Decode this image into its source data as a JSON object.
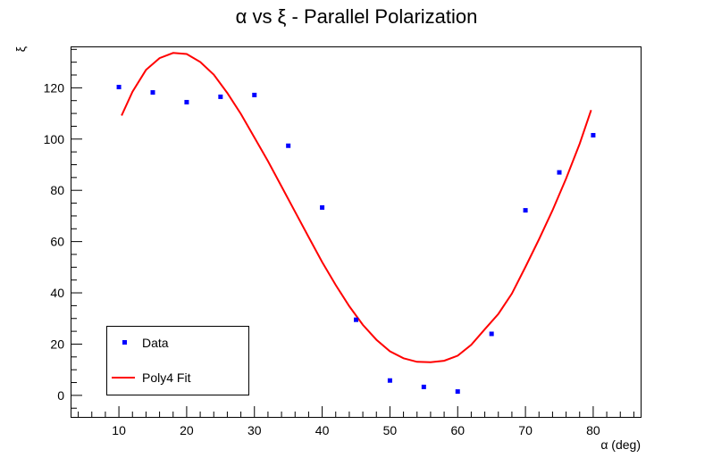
{
  "chart_data": {
    "type": "scatter",
    "title": "α vs ξ - Parallel Polarization",
    "xlabel": "α (deg)",
    "ylabel": "ξ",
    "xlim": [
      3,
      87
    ],
    "ylim": [
      -8.4,
      135.8
    ],
    "xticks": [
      10,
      20,
      30,
      40,
      50,
      60,
      70,
      80
    ],
    "yticks": [
      0,
      20,
      40,
      60,
      80,
      100,
      120
    ],
    "grid": false,
    "legend_position": "bottom-left",
    "series": [
      {
        "name": "Data",
        "kind": "markers",
        "color": "#0000ff",
        "x": [
          10,
          15,
          20,
          25,
          30,
          35,
          40,
          45,
          50,
          55,
          60,
          65,
          70,
          75,
          80
        ],
        "y": [
          120.3,
          118.2,
          114.4,
          116.5,
          117.2,
          97.4,
          73.3,
          29.5,
          5.8,
          3.3,
          1.5,
          24.0,
          72.2,
          87.0,
          101.5
        ]
      },
      {
        "name": "Poly4 Fit",
        "kind": "line",
        "color": "#ff0000",
        "x": [
          10.4,
          12,
          14,
          16,
          18,
          20,
          22,
          24,
          26,
          28,
          30,
          32,
          34,
          36,
          38,
          40,
          42,
          44,
          46,
          48,
          50,
          52,
          54,
          56,
          58,
          60,
          62,
          64,
          66,
          68,
          70,
          72,
          74,
          76,
          78,
          79.7
        ],
        "y": [
          109.2,
          118.5,
          127.0,
          131.6,
          133.6,
          133.2,
          130.1,
          125.1,
          118.0,
          109.8,
          100.6,
          91.4,
          81.5,
          71.6,
          61.8,
          52.0,
          43.0,
          34.8,
          27.5,
          21.7,
          17.2,
          14.5,
          13.1,
          12.9,
          13.5,
          15.5,
          19.7,
          25.8,
          31.8,
          39.7,
          50.1,
          60.9,
          72.2,
          84.6,
          98.2,
          111.3
        ]
      }
    ]
  }
}
